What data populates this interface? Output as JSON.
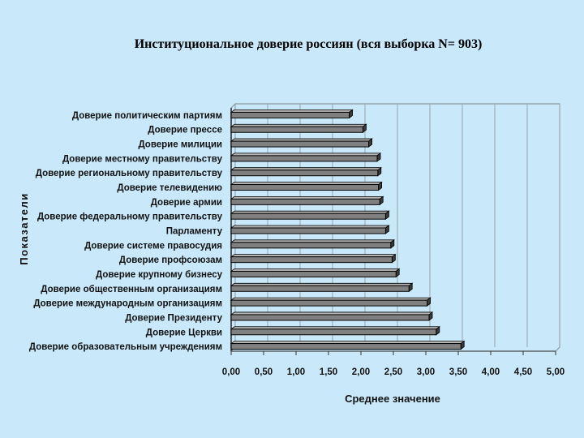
{
  "chart_data": {
    "type": "bar",
    "orientation": "horizontal",
    "title": "Институциональное доверие россиян (вся выборка N= 903)",
    "xlabel": "Среднее значение",
    "ylabel": "Показатели",
    "xlim": [
      0,
      5
    ],
    "x_ticks": [
      "0,00",
      "0,50",
      "1,00",
      "1,50",
      "2,00",
      "2,50",
      "3,00",
      "3,50",
      "4,00",
      "4,50",
      "5,00"
    ],
    "grid": "vertical",
    "categories": [
      "Доверие политическим партиям",
      "Доверие прессе",
      "Доверие милиции",
      "Доверие местному правительству",
      "Доверие региональному правительству",
      "Доверие телевидению",
      "Доверие армии",
      "Доверие федеральному правительству",
      "Парламенту",
      "Доверие системе правосудия",
      "Доверие профсоюзам",
      "Доверие крупному бизнесу",
      "Доверие общественным организациям",
      "Доверие международным организациям",
      "Доверие Президенту",
      "Доверие Церкви",
      "Доверие образовательным учреждениям"
    ],
    "values": [
      1.82,
      2.03,
      2.12,
      2.25,
      2.26,
      2.27,
      2.29,
      2.38,
      2.38,
      2.46,
      2.48,
      2.54,
      2.74,
      3.02,
      3.05,
      3.16,
      3.54
    ],
    "colors": {
      "bar": "#808080",
      "bar_top": "#b4b4b4",
      "bar_side": "#3a3a3a",
      "bar_outline": "#000000",
      "background": "#c9e9fb",
      "grid": "#9aa4aa"
    }
  }
}
